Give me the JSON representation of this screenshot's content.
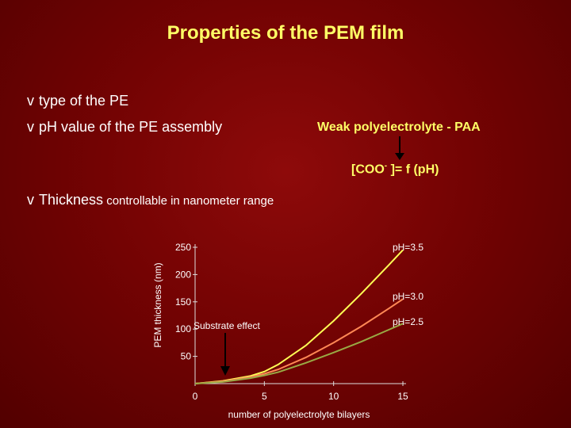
{
  "title": "Properties of the PEM film",
  "bullets": {
    "type": "type of the PE",
    "ph": "pH value of the PE assembly",
    "thick_main": "Thickness",
    "thick_rest": " controllable in nanometer range",
    "mark": "v"
  },
  "weak_label": "Weak polyelectrolyte - PAA",
  "coo_label": {
    "pre": "[COO",
    "sup": "-",
    "post": " ]= f (pH)"
  },
  "colors": {
    "title": "#ffff66",
    "series_35": "#ffff55",
    "series_30": "#ff8855",
    "series_25": "#99aa44"
  },
  "chart_data": {
    "type": "line",
    "xlabel": "number of polyelectrolyte bilayers",
    "ylabel": "PEM thickness (nm)",
    "x_ticks": [
      "0",
      "5",
      "10",
      "15"
    ],
    "y_ticks": [
      "250",
      "200",
      "150",
      "100",
      "50"
    ],
    "xlim": [
      0,
      15
    ],
    "ylim": [
      0,
      250
    ],
    "annotation": "Substrate effect",
    "series": [
      {
        "name": "pH=3.5",
        "x": [
          0,
          2,
          4,
          5,
          6,
          8,
          10,
          12,
          14,
          15
        ],
        "y": [
          0,
          5,
          14,
          22,
          35,
          70,
          115,
          165,
          218,
          245
        ]
      },
      {
        "name": "pH=3.0",
        "x": [
          0,
          2,
          4,
          5,
          6,
          8,
          10,
          12,
          14,
          15
        ],
        "y": [
          0,
          4,
          12,
          18,
          26,
          48,
          75,
          105,
          138,
          155
        ]
      },
      {
        "name": "pH=2.5",
        "x": [
          0,
          2,
          4,
          5,
          6,
          8,
          10,
          12,
          14,
          15
        ],
        "y": [
          0,
          3,
          10,
          15,
          21,
          38,
          57,
          77,
          99,
          110
        ]
      }
    ]
  }
}
